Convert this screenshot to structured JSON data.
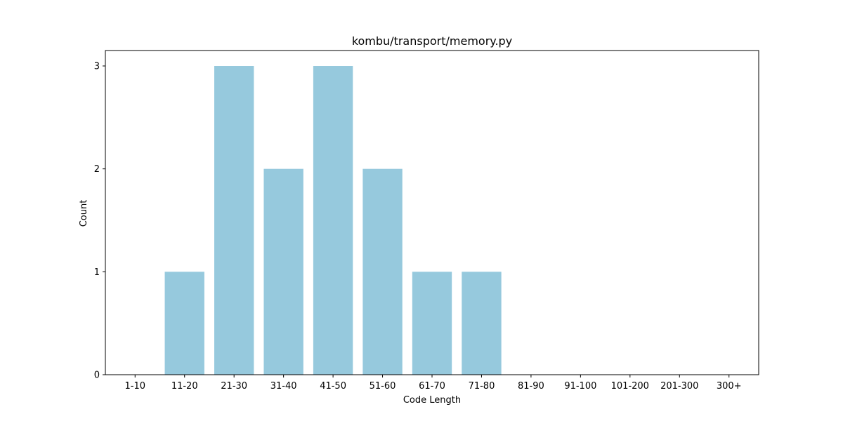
{
  "chart_data": {
    "type": "bar",
    "title": "kombu/transport/memory.py",
    "xlabel": "Code Length",
    "ylabel": "Count",
    "categories": [
      "1-10",
      "11-20",
      "21-30",
      "31-40",
      "41-50",
      "51-60",
      "61-70",
      "71-80",
      "81-90",
      "91-100",
      "101-200",
      "201-300",
      "300+"
    ],
    "values": [
      0,
      1,
      3,
      2,
      3,
      2,
      1,
      1,
      0,
      0,
      0,
      0,
      0
    ],
    "ylim": [
      0,
      3.15
    ],
    "yticks": [
      0,
      1,
      2,
      3
    ],
    "grid": false,
    "legend": "none",
    "colors": {
      "bar": "#96c9dd",
      "axis": "#000000",
      "background": "#ffffff"
    }
  }
}
